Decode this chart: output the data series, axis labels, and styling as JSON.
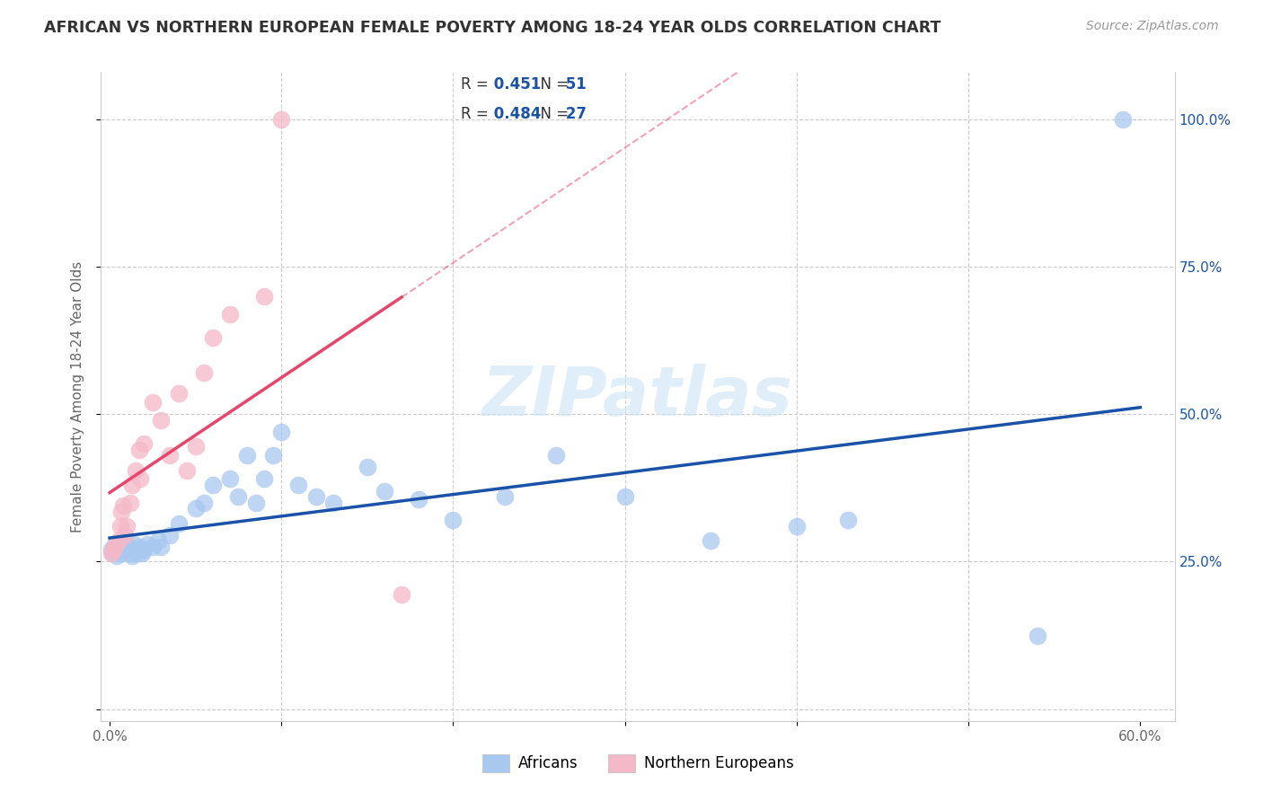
{
  "title": "AFRICAN VS NORTHERN EUROPEAN FEMALE POVERTY AMONG 18-24 YEAR OLDS CORRELATION CHART",
  "source": "Source: ZipAtlas.com",
  "ylabel": "Female Poverty Among 18-24 Year Olds",
  "xlim": [
    -0.005,
    0.62
  ],
  "ylim": [
    -0.02,
    1.08
  ],
  "african_R": 0.451,
  "african_N": 51,
  "northern_R": 0.484,
  "northern_N": 27,
  "african_color": "#a8c8f0",
  "northern_color": "#f5b8c8",
  "african_line_color": "#1a52a8",
  "northern_line_color": "#e8456a",
  "watermark": "ZIPatlas",
  "african_x": [
    0.001,
    0.002,
    0.003,
    0.004,
    0.005,
    0.006,
    0.007,
    0.008,
    0.009,
    0.01,
    0.011,
    0.012,
    0.013,
    0.014,
    0.015,
    0.016,
    0.017,
    0.018,
    0.019,
    0.02,
    0.022,
    0.025,
    0.028,
    0.03,
    0.035,
    0.04,
    0.05,
    0.055,
    0.06,
    0.07,
    0.075,
    0.08,
    0.085,
    0.09,
    0.095,
    0.1,
    0.11,
    0.12,
    0.13,
    0.15,
    0.16,
    0.18,
    0.2,
    0.23,
    0.26,
    0.3,
    0.35,
    0.4,
    0.43,
    0.54,
    0.59
  ],
  "african_y": [
    0.27,
    0.265,
    0.28,
    0.26,
    0.275,
    0.27,
    0.265,
    0.28,
    0.275,
    0.27,
    0.275,
    0.265,
    0.26,
    0.28,
    0.27,
    0.265,
    0.275,
    0.27,
    0.265,
    0.27,
    0.28,
    0.275,
    0.285,
    0.275,
    0.295,
    0.315,
    0.34,
    0.35,
    0.38,
    0.39,
    0.36,
    0.43,
    0.35,
    0.39,
    0.43,
    0.47,
    0.38,
    0.36,
    0.35,
    0.41,
    0.37,
    0.355,
    0.32,
    0.36,
    0.43,
    0.36,
    0.285,
    0.31,
    0.32,
    0.125,
    1.0
  ],
  "northern_x": [
    0.001,
    0.002,
    0.003,
    0.005,
    0.006,
    0.007,
    0.008,
    0.009,
    0.01,
    0.012,
    0.013,
    0.015,
    0.017,
    0.018,
    0.02,
    0.025,
    0.03,
    0.035,
    0.04,
    0.045,
    0.05,
    0.055,
    0.06,
    0.07,
    0.09,
    0.1,
    0.17
  ],
  "northern_y": [
    0.265,
    0.27,
    0.275,
    0.285,
    0.31,
    0.335,
    0.345,
    0.295,
    0.31,
    0.35,
    0.38,
    0.405,
    0.44,
    0.39,
    0.45,
    0.52,
    0.49,
    0.43,
    0.535,
    0.405,
    0.445,
    0.57,
    0.63,
    0.67,
    0.7,
    1.0,
    0.195
  ],
  "legend_african_label": "R =  0.451   N =  51",
  "legend_northern_label": "R =  0.484   N =  27"
}
